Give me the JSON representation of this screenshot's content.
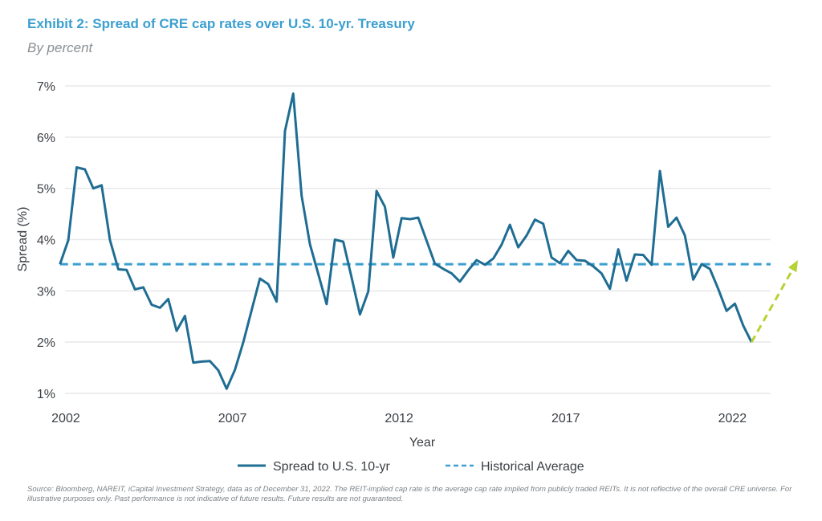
{
  "header": {
    "title": "Exhibit 2: Spread of CRE cap rates over U.S. 10-yr. Treasury",
    "subtitle": "By percent"
  },
  "source": "Source: Bloomberg, NAREIT, iCapital Investment Strategy, data as of December 31, 2022. The REIT-implied cap rate is the average cap rate implied from publicly traded REITs. It is not reflective of the overall CRE universe. For illustrative purposes only. Past performance is not indicative of future results. Future results are not guaranteed.",
  "chart_data": {
    "type": "line",
    "title": "Exhibit 2: Spread of CRE cap rates over U.S. 10-yr. Treasury",
    "subtitle": "By percent",
    "xlabel": "Year",
    "ylabel": "Spread (%)",
    "x_frequency": "quarterly",
    "x_start": "2002",
    "x_ticks": [
      "2002",
      "2007",
      "2012",
      "2017",
      "2022"
    ],
    "y_ticks": [
      "1%",
      "2%",
      "3%",
      "4%",
      "5%",
      "6%",
      "7%"
    ],
    "ylim": [
      1,
      7
    ],
    "grid": "horizontal",
    "legend_position": "bottom",
    "series": [
      {
        "name": "Spread to U.S. 10-yr",
        "color": "#1f6d93",
        "style": "solid",
        "values": [
          3.52,
          3.99,
          5.41,
          5.37,
          5.0,
          5.06,
          3.99,
          3.42,
          3.41,
          3.03,
          3.07,
          2.73,
          2.67,
          2.84,
          2.22,
          2.51,
          1.6,
          1.62,
          1.63,
          1.45,
          1.09,
          1.46,
          2.0,
          2.62,
          3.24,
          3.13,
          2.79,
          6.12,
          6.85,
          4.86,
          3.91,
          3.33,
          2.74,
          4.0,
          3.96,
          3.26,
          2.54,
          2.99,
          4.95,
          4.64,
          3.65,
          4.42,
          4.4,
          4.43,
          3.98,
          3.53,
          3.43,
          3.34,
          3.18,
          3.4,
          3.6,
          3.51,
          3.63,
          3.9,
          4.29,
          3.85,
          4.08,
          4.39,
          4.31,
          3.65,
          3.54,
          3.78,
          3.6,
          3.59,
          3.48,
          3.34,
          3.04,
          3.81,
          3.2,
          3.71,
          3.7,
          3.51,
          5.34,
          4.25,
          4.43,
          4.08,
          3.22,
          3.52,
          3.43,
          3.04,
          2.61,
          2.75,
          2.32,
          2.0
        ]
      },
      {
        "name": "Historical Average",
        "color": "#3b9fcf",
        "style": "dashed",
        "value": 3.52
      }
    ],
    "annotation": {
      "type": "arrow",
      "style": "dashed",
      "color": "#b5d334",
      "from_value": 2.0,
      "to_value": 3.6
    }
  }
}
